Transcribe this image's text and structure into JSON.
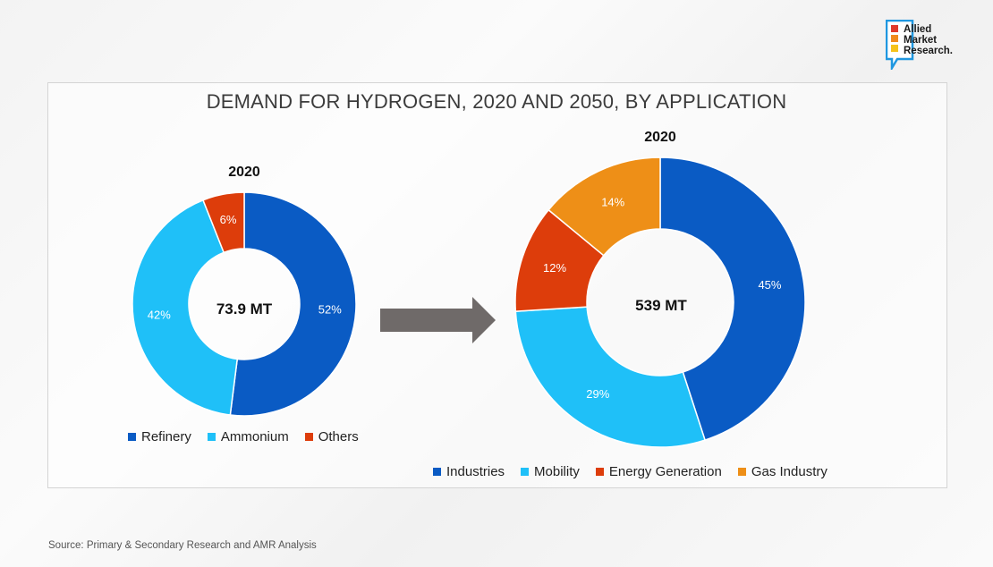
{
  "logo": {
    "lines": [
      "Allied",
      "Market",
      "Research."
    ]
  },
  "title": "DEMAND FOR HYDROGEN, 2020 AND 2050, BY APPLICATION",
  "colors": {
    "refinery": "#0a5bc4",
    "ammonium": "#1fc0f8",
    "others": "#dd3d0b",
    "industries": "#0a5bc4",
    "mobility": "#1fc0f8",
    "energy_generation": "#dd3d0b",
    "gas_industry": "#ee8f17",
    "arrow": "#6f6a69"
  },
  "chart_data": [
    {
      "type": "pie",
      "title": "2020",
      "center_label": "73.9 MT",
      "categories": [
        "Refinery",
        "Ammonium",
        "Others"
      ],
      "values": [
        52,
        42,
        6
      ],
      "value_labels": [
        "52%",
        "42%",
        "6%"
      ],
      "colors": [
        "#0a5bc4",
        "#1fc0f8",
        "#dd3d0b"
      ],
      "legend": "bottom"
    },
    {
      "type": "pie",
      "title": "2020",
      "center_label": "539 MT",
      "categories": [
        "Industries",
        "Mobility",
        "Energy Generation",
        "Gas Industry"
      ],
      "values": [
        45,
        29,
        12,
        14
      ],
      "value_labels": [
        "45%",
        "29%",
        "12%",
        "14%"
      ],
      "colors": [
        "#0a5bc4",
        "#1fc0f8",
        "#dd3d0b",
        "#ee8f17"
      ],
      "legend": "bottom"
    }
  ],
  "source": "Source: Primary & Secondary Research and AMR Analysis"
}
